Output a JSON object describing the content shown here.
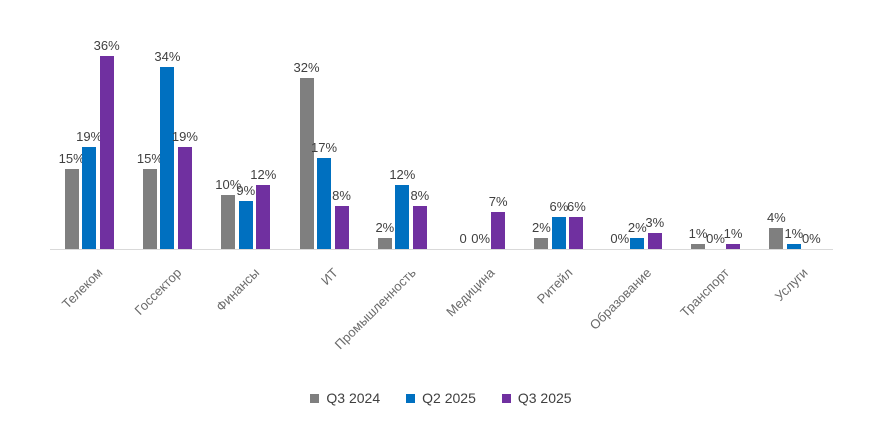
{
  "chart_data": {
    "type": "bar",
    "title": "",
    "xlabel": "",
    "ylabel": "",
    "ylim": [
      0,
      40
    ],
    "grid": false,
    "legend_position": "bottom-center",
    "axis_line_color": "#d9d9d9",
    "value_label_color": "#404040",
    "category_label_color": "#6a6a6a",
    "categories": [
      "Телеком",
      "Госсектор",
      "Финансы",
      "ИТ",
      "Промышленность",
      "Медицина",
      "Ритейл",
      "Образование",
      "Транспорт",
      "Услуги"
    ],
    "series": [
      {
        "name": "Q3 2024",
        "color": "#7f7f7f",
        "values": [
          15,
          15,
          10,
          32,
          2,
          0,
          2,
          0,
          1,
          4
        ],
        "labels": [
          "15%",
          "15%",
          "10%",
          "32%",
          "2%",
          "0",
          "2%",
          "0%",
          "1%",
          "4%"
        ]
      },
      {
        "name": "Q2 2025",
        "color": "#0070c0",
        "values": [
          19,
          34,
          9,
          17,
          12,
          0,
          6,
          2,
          0,
          1
        ],
        "labels": [
          "19%",
          "34%",
          "9%",
          "17%",
          "12%",
          "0%",
          "6%",
          "2%",
          "0%",
          "1%"
        ]
      },
      {
        "name": "Q3 2025",
        "color": "#7030a0",
        "values": [
          36,
          19,
          12,
          8,
          8,
          7,
          6,
          3,
          1,
          0
        ],
        "labels": [
          "36%",
          "19%",
          "12%",
          "8%",
          "8%",
          "7%",
          "6%",
          "3%",
          "1%",
          "0%"
        ]
      }
    ]
  }
}
